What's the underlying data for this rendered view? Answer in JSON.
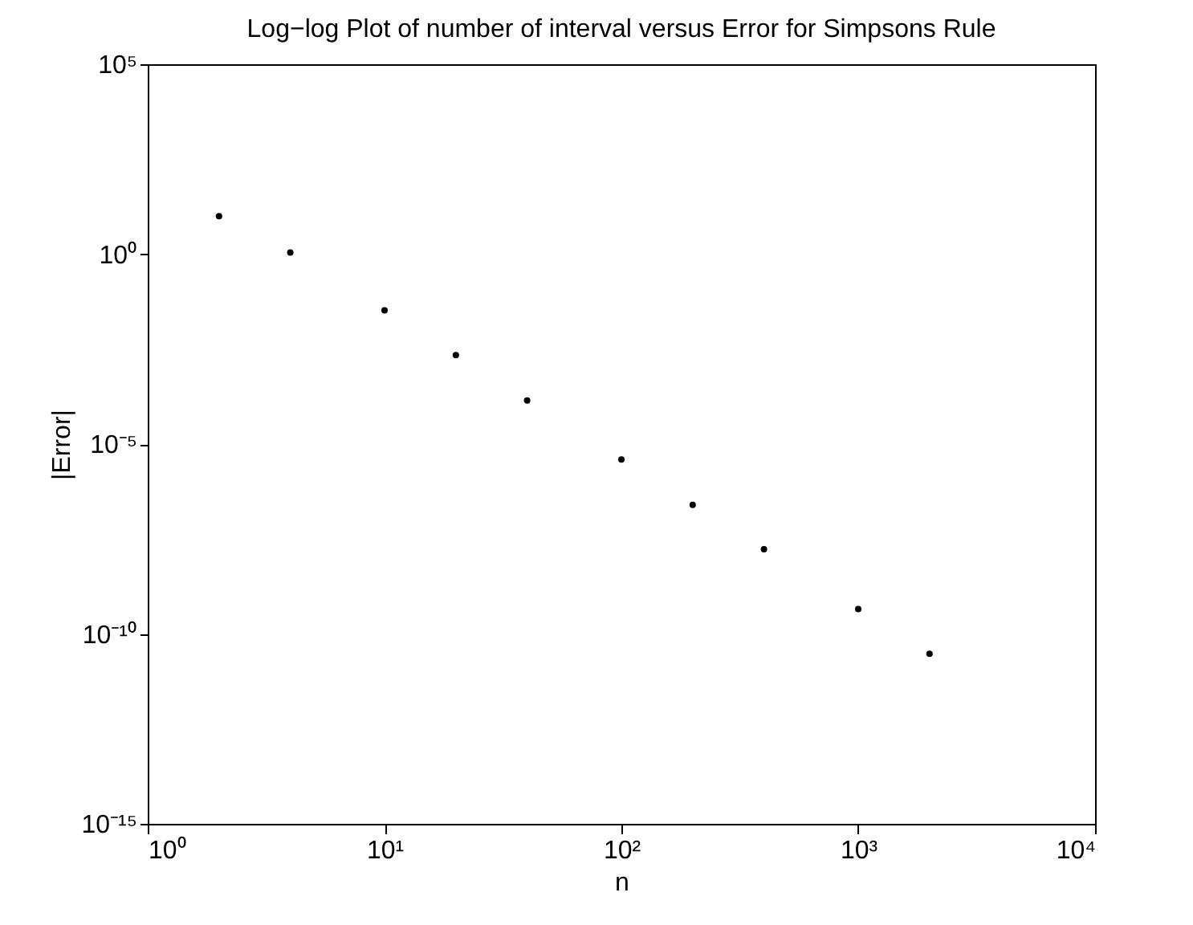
{
  "chart_data": {
    "type": "scatter",
    "title": "Log−log Plot of number of interval versus Error for Simpsons Rule",
    "xlabel": "n",
    "ylabel": "|Error|",
    "log": "xy",
    "grid": false,
    "marker": "circle",
    "x": [
      2,
      4,
      10,
      20,
      40,
      100,
      200,
      400,
      1000,
      2000
    ],
    "series": [
      {
        "color": "#000000",
        "values": [
          10,
          1.1,
          0.033,
          0.0022,
          0.00014,
          3.9e-06,
          2.5e-07,
          1.7e-08,
          4.5e-10,
          3e-11
        ]
      }
    ],
    "xlim": [
      1,
      10000
    ],
    "ylim": [
      1e-15,
      100000
    ],
    "xticks": [
      {
        "value": 1,
        "label": "10⁰"
      },
      {
        "value": 10,
        "label": "10¹"
      },
      {
        "value": 100,
        "label": "10²"
      },
      {
        "value": 1000,
        "label": "10³"
      },
      {
        "value": 10000,
        "label": "10⁴"
      }
    ],
    "yticks": [
      {
        "value": 1e-15,
        "label": "10⁻¹⁵"
      },
      {
        "value": 1e-10,
        "label": "10⁻¹⁰"
      },
      {
        "value": 1e-05,
        "label": "10⁻⁵"
      },
      {
        "value": 1,
        "label": "10⁰"
      },
      {
        "value": 100000,
        "label": "10⁵"
      }
    ]
  }
}
